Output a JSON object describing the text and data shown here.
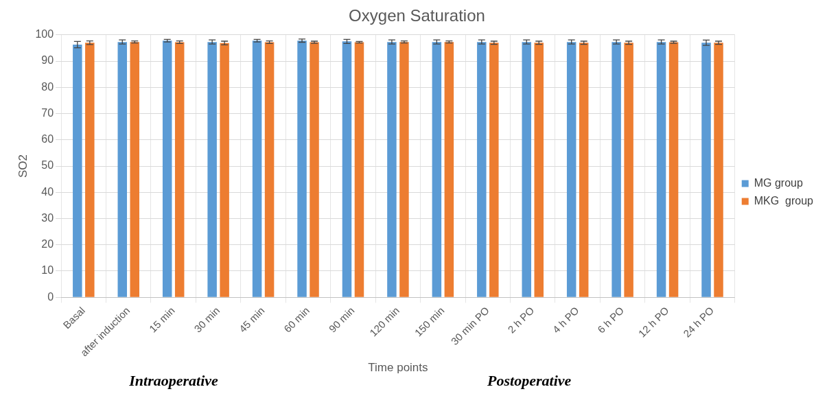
{
  "chart_data": {
    "type": "bar",
    "title": "Oxygen Saturation",
    "xlabel": "Time points",
    "ylabel": "SO2",
    "categories": [
      "Basal",
      "after induction",
      "15 min",
      "30 min",
      "45 min",
      "60 min",
      "90 min",
      "120 min",
      "150 min",
      "30 min PO",
      "2 h PO",
      "4 h PO",
      "6 h PO",
      "12 h PO",
      "24 h PO"
    ],
    "series": [
      {
        "name": "MG group",
        "color": "#5b9bd5",
        "values": [
          96.3,
          97.3,
          97.8,
          97.3,
          97.8,
          97.8,
          97.5,
          97.3,
          97.3,
          97.3,
          97.3,
          97.3,
          97.3,
          97.3,
          97
        ],
        "errors": [
          1.2,
          0.8,
          0.5,
          0.8,
          0.5,
          0.6,
          0.8,
          0.8,
          0.8,
          0.8,
          0.8,
          0.8,
          0.8,
          0.8,
          1
        ]
      },
      {
        "name": "MKG  group",
        "color": "#ed7d31",
        "values": [
          97,
          97.3,
          97.2,
          96.9,
          97.2,
          97.2,
          97.2,
          97.3,
          97.3,
          97,
          97,
          97,
          97,
          97.2,
          97
        ],
        "errors": [
          0.7,
          0.4,
          0.5,
          0.7,
          0.5,
          0.4,
          0.3,
          0.4,
          0.4,
          0.6,
          0.6,
          0.6,
          0.6,
          0.4,
          0.6
        ]
      }
    ],
    "ylim": [
      0,
      100
    ],
    "yticks": [
      0,
      10,
      20,
      30,
      40,
      50,
      60,
      70,
      80,
      90,
      100
    ],
    "grid": true,
    "legend": "right",
    "annotations": [
      "Intraoperative",
      "Postoperative"
    ]
  }
}
